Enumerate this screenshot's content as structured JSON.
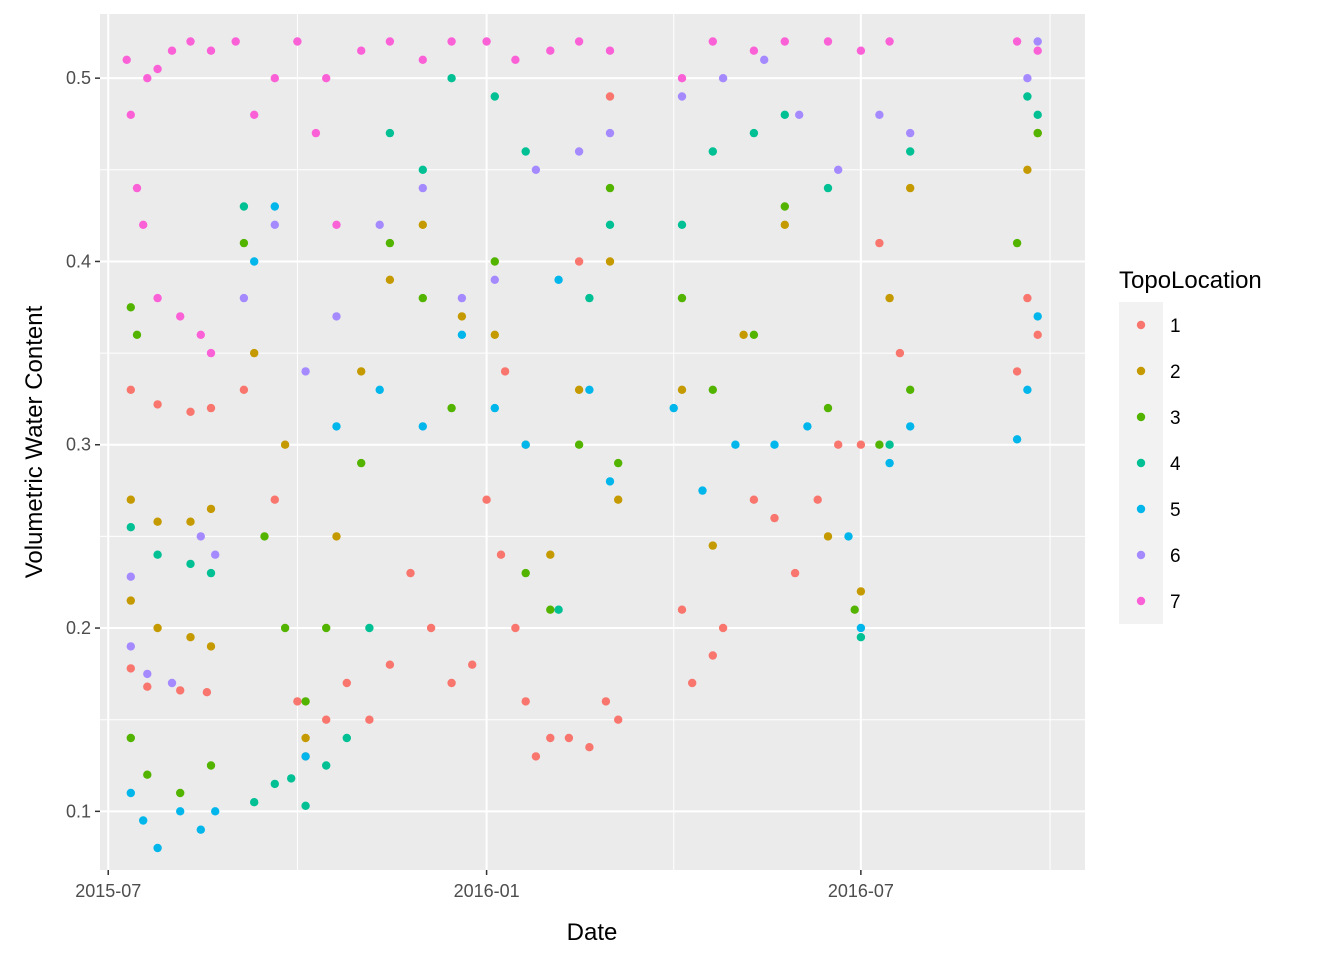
{
  "chart_data": {
    "type": "scatter",
    "xlabel": "Date",
    "ylabel": "Volumetric Water Content",
    "x_ticks": [
      "2015-07",
      "2016-01",
      "2016-07"
    ],
    "y_ticks": [
      "0.1",
      "0.2",
      "0.3",
      "0.4",
      "0.5"
    ],
    "xlim": [
      "2015-06-27",
      "2016-10-18"
    ],
    "ylim": [
      0.068,
      0.535
    ],
    "grid": true,
    "background": "#EBEBEB",
    "legend": {
      "title": "TopoLocation",
      "position": "right"
    },
    "series": [
      {
        "name": "1",
        "color": "#F8766D",
        "points": [
          [
            "2015-07-12",
            0.33
          ],
          [
            "2015-07-25",
            0.322
          ],
          [
            "2015-08-10",
            0.318
          ],
          [
            "2015-08-20",
            0.32
          ],
          [
            "2015-07-12",
            0.178
          ],
          [
            "2015-07-20",
            0.168
          ],
          [
            "2015-08-05",
            0.166
          ],
          [
            "2015-08-18",
            0.165
          ],
          [
            "2015-09-05",
            0.33
          ],
          [
            "2015-09-20",
            0.27
          ],
          [
            "2015-10-01",
            0.16
          ],
          [
            "2015-10-05",
            0.13
          ],
          [
            "2015-10-15",
            0.15
          ],
          [
            "2015-10-25",
            0.17
          ],
          [
            "2015-11-05",
            0.15
          ],
          [
            "2015-11-15",
            0.18
          ],
          [
            "2015-11-25",
            0.23
          ],
          [
            "2015-12-05",
            0.2
          ],
          [
            "2015-12-15",
            0.17
          ],
          [
            "2015-12-25",
            0.18
          ],
          [
            "2016-01-01",
            0.27
          ],
          [
            "2016-01-08",
            0.24
          ],
          [
            "2016-01-15",
            0.2
          ],
          [
            "2016-01-20",
            0.16
          ],
          [
            "2016-01-25",
            0.13
          ],
          [
            "2016-02-01",
            0.14
          ],
          [
            "2016-02-10",
            0.14
          ],
          [
            "2016-02-20",
            0.135
          ],
          [
            "2016-02-28",
            0.16
          ],
          [
            "2016-03-05",
            0.15
          ],
          [
            "2016-01-10",
            0.34
          ],
          [
            "2016-02-15",
            0.4
          ],
          [
            "2016-03-01",
            0.49
          ],
          [
            "2016-04-05",
            0.21
          ],
          [
            "2016-04-10",
            0.17
          ],
          [
            "2016-04-20",
            0.185
          ],
          [
            "2016-04-25",
            0.2
          ],
          [
            "2016-05-10",
            0.27
          ],
          [
            "2016-05-20",
            0.26
          ],
          [
            "2016-05-30",
            0.23
          ],
          [
            "2016-06-10",
            0.27
          ],
          [
            "2016-06-20",
            0.3
          ],
          [
            "2016-07-01",
            0.3
          ],
          [
            "2016-07-10",
            0.41
          ],
          [
            "2016-07-20",
            0.35
          ],
          [
            "2016-09-15",
            0.34
          ],
          [
            "2016-09-20",
            0.38
          ],
          [
            "2016-09-25",
            0.36
          ]
        ]
      },
      {
        "name": "2",
        "color": "#C49A00",
        "points": [
          [
            "2015-07-12",
            0.27
          ],
          [
            "2015-07-25",
            0.258
          ],
          [
            "2015-08-10",
            0.258
          ],
          [
            "2015-08-20",
            0.265
          ],
          [
            "2015-07-12",
            0.215
          ],
          [
            "2015-07-25",
            0.2
          ],
          [
            "2015-08-10",
            0.195
          ],
          [
            "2015-08-20",
            0.19
          ],
          [
            "2015-09-10",
            0.35
          ],
          [
            "2015-09-25",
            0.3
          ],
          [
            "2015-10-05",
            0.14
          ],
          [
            "2015-10-20",
            0.25
          ],
          [
            "2015-11-01",
            0.34
          ],
          [
            "2015-11-15",
            0.39
          ],
          [
            "2015-12-01",
            0.42
          ],
          [
            "2015-12-20",
            0.37
          ],
          [
            "2016-01-05",
            0.36
          ],
          [
            "2016-01-20",
            0.3
          ],
          [
            "2016-02-01",
            0.24
          ],
          [
            "2016-02-15",
            0.33
          ],
          [
            "2016-03-01",
            0.4
          ],
          [
            "2016-03-05",
            0.27
          ],
          [
            "2016-04-05",
            0.33
          ],
          [
            "2016-04-20",
            0.245
          ],
          [
            "2016-05-05",
            0.36
          ],
          [
            "2016-05-25",
            0.42
          ],
          [
            "2016-06-15",
            0.25
          ],
          [
            "2016-07-01",
            0.22
          ],
          [
            "2016-07-15",
            0.38
          ],
          [
            "2016-07-25",
            0.44
          ],
          [
            "2016-09-20",
            0.45
          ],
          [
            "2016-09-25",
            0.47
          ]
        ]
      },
      {
        "name": "3",
        "color": "#53B400",
        "points": [
          [
            "2015-07-12",
            0.375
          ],
          [
            "2015-07-15",
            0.36
          ],
          [
            "2015-07-12",
            0.14
          ],
          [
            "2015-07-20",
            0.12
          ],
          [
            "2015-08-05",
            0.11
          ],
          [
            "2015-08-20",
            0.125
          ],
          [
            "2015-09-05",
            0.41
          ],
          [
            "2015-09-15",
            0.25
          ],
          [
            "2015-09-25",
            0.2
          ],
          [
            "2015-10-05",
            0.16
          ],
          [
            "2015-10-15",
            0.2
          ],
          [
            "2015-11-01",
            0.29
          ],
          [
            "2015-11-15",
            0.41
          ],
          [
            "2015-12-01",
            0.38
          ],
          [
            "2015-12-15",
            0.32
          ],
          [
            "2016-01-05",
            0.4
          ],
          [
            "2016-01-20",
            0.23
          ],
          [
            "2016-02-01",
            0.21
          ],
          [
            "2016-02-15",
            0.3
          ],
          [
            "2016-03-01",
            0.44
          ],
          [
            "2016-03-05",
            0.29
          ],
          [
            "2016-04-05",
            0.38
          ],
          [
            "2016-04-20",
            0.33
          ],
          [
            "2016-05-10",
            0.36
          ],
          [
            "2016-05-25",
            0.43
          ],
          [
            "2016-06-15",
            0.32
          ],
          [
            "2016-06-28",
            0.21
          ],
          [
            "2016-07-10",
            0.3
          ],
          [
            "2016-07-25",
            0.33
          ],
          [
            "2016-09-15",
            0.41
          ],
          [
            "2016-09-25",
            0.47
          ]
        ]
      },
      {
        "name": "4",
        "color": "#00C094",
        "points": [
          [
            "2015-07-12",
            0.255
          ],
          [
            "2015-07-25",
            0.24
          ],
          [
            "2015-08-10",
            0.235
          ],
          [
            "2015-08-20",
            0.23
          ],
          [
            "2015-09-05",
            0.43
          ],
          [
            "2015-09-10",
            0.105
          ],
          [
            "2015-09-20",
            0.115
          ],
          [
            "2015-09-28",
            0.118
          ],
          [
            "2015-10-05",
            0.103
          ],
          [
            "2015-10-15",
            0.125
          ],
          [
            "2015-10-25",
            0.14
          ],
          [
            "2015-11-05",
            0.2
          ],
          [
            "2015-11-15",
            0.47
          ],
          [
            "2015-12-01",
            0.45
          ],
          [
            "2015-12-15",
            0.5
          ],
          [
            "2016-01-05",
            0.49
          ],
          [
            "2016-01-20",
            0.46
          ],
          [
            "2016-02-05",
            0.21
          ],
          [
            "2016-02-20",
            0.38
          ],
          [
            "2016-03-01",
            0.42
          ],
          [
            "2016-04-05",
            0.42
          ],
          [
            "2016-04-20",
            0.46
          ],
          [
            "2016-05-10",
            0.47
          ],
          [
            "2016-05-25",
            0.48
          ],
          [
            "2016-06-15",
            0.44
          ],
          [
            "2016-07-01",
            0.195
          ],
          [
            "2016-07-15",
            0.3
          ],
          [
            "2016-07-25",
            0.46
          ],
          [
            "2016-09-20",
            0.49
          ],
          [
            "2016-09-25",
            0.48
          ]
        ]
      },
      {
        "name": "5",
        "color": "#00B6EB",
        "points": [
          [
            "2015-07-12",
            0.11
          ],
          [
            "2015-07-18",
            0.095
          ],
          [
            "2015-07-25",
            0.08
          ],
          [
            "2015-08-05",
            0.1
          ],
          [
            "2015-08-15",
            0.09
          ],
          [
            "2015-08-22",
            0.1
          ],
          [
            "2015-09-10",
            0.4
          ],
          [
            "2015-09-20",
            0.43
          ],
          [
            "2015-10-05",
            0.13
          ],
          [
            "2015-10-20",
            0.31
          ],
          [
            "2015-11-10",
            0.33
          ],
          [
            "2015-12-01",
            0.31
          ],
          [
            "2015-12-20",
            0.36
          ],
          [
            "2016-01-05",
            0.32
          ],
          [
            "2016-01-20",
            0.3
          ],
          [
            "2016-02-05",
            0.39
          ],
          [
            "2016-02-20",
            0.33
          ],
          [
            "2016-03-01",
            0.28
          ],
          [
            "2016-04-01",
            0.32
          ],
          [
            "2016-04-15",
            0.275
          ],
          [
            "2016-05-01",
            0.3
          ],
          [
            "2016-05-20",
            0.3
          ],
          [
            "2016-06-05",
            0.31
          ],
          [
            "2016-06-25",
            0.25
          ],
          [
            "2016-07-01",
            0.2
          ],
          [
            "2016-07-15",
            0.29
          ],
          [
            "2016-07-25",
            0.31
          ],
          [
            "2016-09-15",
            0.303
          ],
          [
            "2016-09-20",
            0.33
          ],
          [
            "2016-09-25",
            0.37
          ]
        ]
      },
      {
        "name": "6",
        "color": "#A58AFF",
        "points": [
          [
            "2015-07-12",
            0.228
          ],
          [
            "2015-07-12",
            0.19
          ],
          [
            "2015-07-20",
            0.175
          ],
          [
            "2015-08-01",
            0.17
          ],
          [
            "2015-08-15",
            0.25
          ],
          [
            "2015-08-22",
            0.24
          ],
          [
            "2015-09-05",
            0.38
          ],
          [
            "2015-09-20",
            0.42
          ],
          [
            "2015-10-05",
            0.34
          ],
          [
            "2015-10-20",
            0.37
          ],
          [
            "2015-11-10",
            0.42
          ],
          [
            "2015-12-01",
            0.44
          ],
          [
            "2015-12-20",
            0.38
          ],
          [
            "2016-01-05",
            0.39
          ],
          [
            "2016-01-25",
            0.45
          ],
          [
            "2016-02-15",
            0.46
          ],
          [
            "2016-03-01",
            0.47
          ],
          [
            "2016-04-05",
            0.49
          ],
          [
            "2016-04-25",
            0.5
          ],
          [
            "2016-05-15",
            0.51
          ],
          [
            "2016-06-01",
            0.48
          ],
          [
            "2016-06-20",
            0.45
          ],
          [
            "2016-07-10",
            0.48
          ],
          [
            "2016-07-25",
            0.47
          ],
          [
            "2016-09-20",
            0.5
          ],
          [
            "2016-09-25",
            0.52
          ]
        ]
      },
      {
        "name": "7",
        "color": "#FB61D7",
        "points": [
          [
            "2015-07-10",
            0.51
          ],
          [
            "2015-07-12",
            0.48
          ],
          [
            "2015-07-15",
            0.44
          ],
          [
            "2015-07-18",
            0.42
          ],
          [
            "2015-07-20",
            0.5
          ],
          [
            "2015-07-25",
            0.505
          ],
          [
            "2015-08-01",
            0.515
          ],
          [
            "2015-08-10",
            0.52
          ],
          [
            "2015-08-20",
            0.515
          ],
          [
            "2015-07-25",
            0.38
          ],
          [
            "2015-08-05",
            0.37
          ],
          [
            "2015-08-15",
            0.36
          ],
          [
            "2015-08-20",
            0.35
          ],
          [
            "2015-09-01",
            0.52
          ],
          [
            "2015-09-10",
            0.48
          ],
          [
            "2015-09-20",
            0.5
          ],
          [
            "2015-10-01",
            0.52
          ],
          [
            "2015-10-10",
            0.47
          ],
          [
            "2015-10-15",
            0.5
          ],
          [
            "2015-10-20",
            0.42
          ],
          [
            "2015-11-01",
            0.515
          ],
          [
            "2015-11-15",
            0.52
          ],
          [
            "2015-12-01",
            0.51
          ],
          [
            "2015-12-15",
            0.52
          ],
          [
            "2016-01-01",
            0.52
          ],
          [
            "2016-01-15",
            0.51
          ],
          [
            "2016-02-01",
            0.515
          ],
          [
            "2016-02-15",
            0.52
          ],
          [
            "2016-03-01",
            0.515
          ],
          [
            "2016-04-05",
            0.5
          ],
          [
            "2016-04-20",
            0.52
          ],
          [
            "2016-05-10",
            0.515
          ],
          [
            "2016-05-25",
            0.52
          ],
          [
            "2016-06-15",
            0.52
          ],
          [
            "2016-07-01",
            0.515
          ],
          [
            "2016-07-15",
            0.52
          ],
          [
            "2016-09-15",
            0.52
          ],
          [
            "2016-09-25",
            0.515
          ]
        ]
      }
    ]
  }
}
